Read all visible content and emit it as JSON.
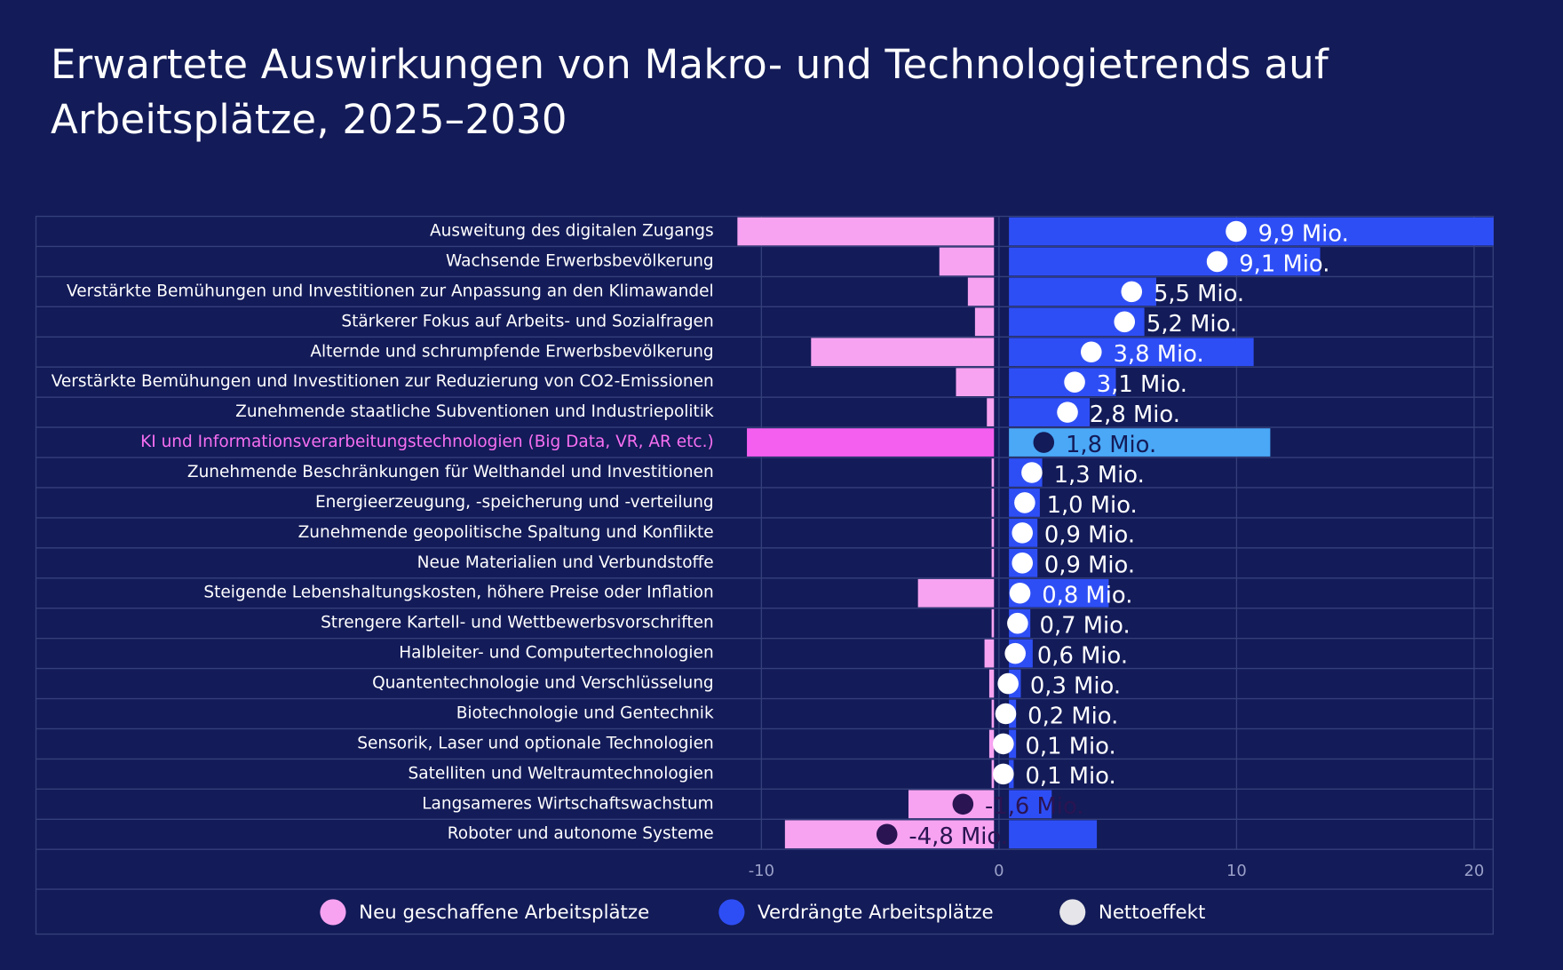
{
  "chart_data": {
    "type": "diverging-bar",
    "title": "Erwartete Auswirkungen von Makro- und Technologietrends auf Arbeitsplätze, 2025–2030",
    "categories": [
      "Ausweitung des digitalen Zugangs",
      "Wachsende Erwerbsbevölkerung",
      "Verstärkte Bemühungen und Investitionen zur Anpassung an den Klimawandel",
      "Stärkerer Fokus auf Arbeits- und Sozialfragen",
      "Alternde und schrumpfende Erwerbsbevölkerung",
      "Verstärkte Bemühungen und Investitionen zur Reduzierung von CO2-Emissionen",
      "Zunehmende staatliche Subventionen und Industriepolitik",
      "KI und Informationsverarbeitungstechnologien (Big Data, VR, AR etc.)",
      "Zunehmende Beschränkungen für Welthandel und Investitionen",
      "Energieerzeugung, -speicherung und -verteilung",
      "Zunehmende geopolitische Spaltung und Konflikte",
      "Neue Materialien und Verbundstoffe",
      "Steigende Lebenshaltungskosten, höhere Preise oder Inflation",
      "Strengere Kartell- und Wettbewerbsvorschriften",
      "Halbleiter- und Computertechnologien",
      "Quantentechnologie und Verschlüsselung",
      "Biotechnologie und Gentechnik",
      "Sensorik, Laser und optionale Technologien",
      "Satelliten und Weltraumtechnologien",
      "Langsameres Wirtschaftswachstum",
      "Roboter und autonome Systeme"
    ],
    "series": [
      {
        "name": "Neu geschaffene Arbeitsplätze",
        "color": "#f7a3f1",
        "values": [
          -10.8,
          -2.3,
          -1.1,
          -0.8,
          -7.7,
          -1.6,
          -0.3,
          -10.4,
          -0.1,
          -0.1,
          -0.1,
          -0.1,
          -3.2,
          -0.1,
          -0.4,
          -0.2,
          -0.1,
          -0.2,
          -0.1,
          -3.6,
          -8.8
        ]
      },
      {
        "name": "Verdrängte Arbeitsplätze",
        "color": "#2e4ef5",
        "values": [
          20.4,
          13.1,
          6.2,
          5.7,
          10.3,
          4.5,
          3.4,
          11.0,
          1.4,
          1.3,
          1.2,
          1.2,
          4.2,
          0.9,
          1.0,
          0.5,
          0.3,
          0.3,
          0.2,
          1.8,
          3.7
        ]
      },
      {
        "name": "Nettoeffekt",
        "color": "#e6e6ea",
        "values": [
          9.9,
          9.1,
          5.5,
          5.2,
          3.8,
          3.1,
          2.8,
          1.8,
          1.3,
          1.0,
          0.9,
          0.9,
          0.8,
          0.7,
          0.6,
          0.3,
          0.2,
          0.1,
          0.1,
          -1.6,
          -4.8
        ],
        "value_labels": [
          "9,9 Mio.",
          "9,1 Mio.",
          "5,5 Mio.",
          "5,2 Mio.",
          "3,8 Mio.",
          "3,1 Mio.",
          "2,8 Mio.",
          "1,8 Mio.",
          "1,3 Mio.",
          "1,0 Mio.",
          "0,9 Mio.",
          "0,9 Mio.",
          "0,8 Mio.",
          "0,7 Mio.",
          "0,6 Mio.",
          "0,3 Mio.",
          "0,2 Mio.",
          "0,1 Mio.",
          "0,1 Mio.",
          "-1,6 Mio.",
          "-4,8 Mio."
        ]
      }
    ],
    "highlight_index": 7,
    "xlim": [
      -11,
      20.8
    ],
    "xticks": [
      -10,
      0,
      10,
      20
    ],
    "grid": true
  }
}
